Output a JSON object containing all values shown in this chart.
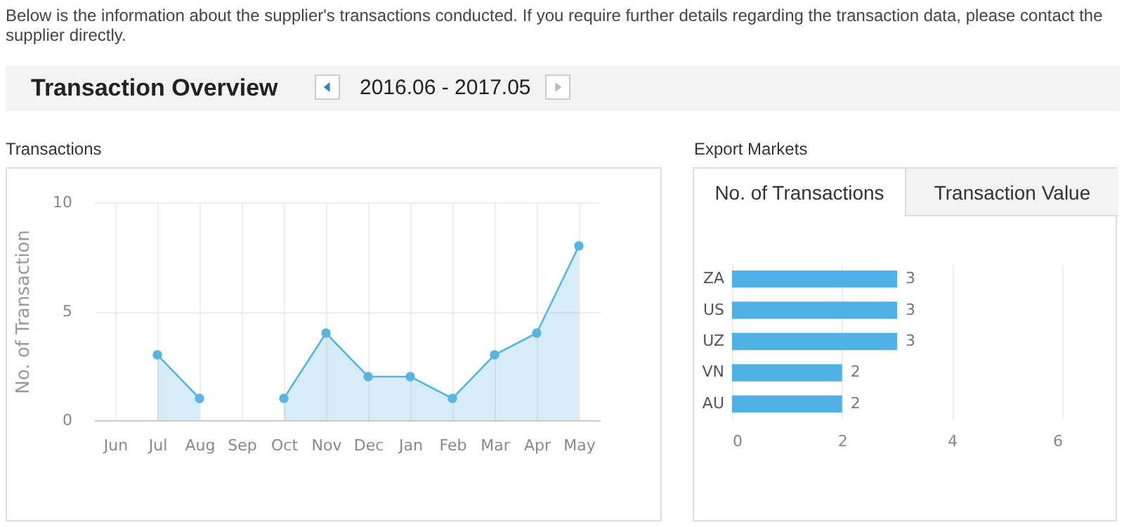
{
  "chart_data": [
    {
      "type": "area",
      "title": "Transactions",
      "annotations": [
        "Below is the information about the supplier's transactions conducted. If you require further details regarding the transaction data, please contact the supplier directly.",
        "Transaction Overview",
        "2016.06 - 2017.05"
      ],
      "ylabel": "No. of Transaction",
      "categories": [
        "Jun",
        "Jul",
        "Aug",
        "Sep",
        "Oct",
        "Nov",
        "Dec",
        "Jan",
        "Feb",
        "Mar",
        "Apr",
        "May"
      ],
      "series": [
        {
          "color": "#5ab4e0",
          "values": [
            null,
            3,
            1,
            null,
            1,
            4,
            2,
            2,
            1,
            3,
            4,
            8
          ]
        }
      ],
      "ylim": [
        0,
        10
      ],
      "yticks": [
        0,
        5,
        10
      ],
      "grid": true,
      "marker": "circle"
    },
    {
      "type": "bar",
      "orientation": "horizontal",
      "title": "Export Markets",
      "annotations": [
        "No. of Transactions",
        "Transaction Value"
      ],
      "categories": [
        "ZA",
        "US",
        "UZ",
        "VN",
        "AU"
      ],
      "series": [
        {
          "color": "#4fb1e6",
          "values": [
            3,
            3,
            3,
            2,
            2
          ]
        }
      ],
      "xlim": [
        0,
        6
      ],
      "xticks": [
        0,
        2,
        4,
        6
      ],
      "grid": "x",
      "data_labels": true
    }
  ]
}
